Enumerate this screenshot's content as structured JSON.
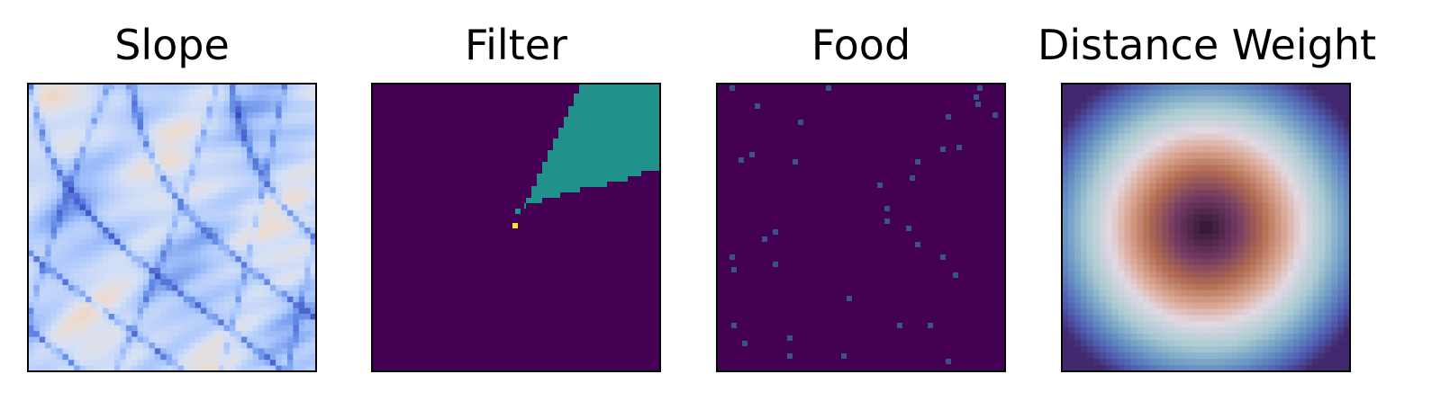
{
  "chart_data": [
    {
      "type": "heatmap",
      "title": "Slope",
      "colormap": "coolwarm",
      "grid": false,
      "axes_ticks": false
    },
    {
      "type": "heatmap",
      "title": "Filter",
      "colormap": "viridis",
      "grid": false,
      "axes_ticks": false
    },
    {
      "type": "heatmap",
      "title": "Food",
      "colormap": "viridis",
      "grid": false,
      "axes_ticks": false
    },
    {
      "type": "heatmap",
      "title": "Distance Weight",
      "colormap": "twilight",
      "grid": false,
      "axes_ticks": false
    }
  ]
}
